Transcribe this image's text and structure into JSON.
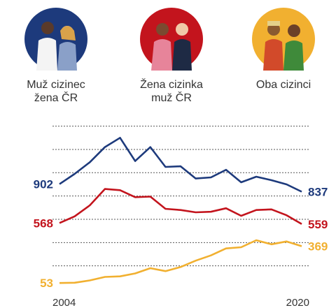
{
  "chart_data": {
    "type": "line",
    "categories": [
      "2004",
      null,
      null,
      null,
      null,
      null,
      null,
      null,
      null,
      null,
      null,
      null,
      null,
      null,
      null,
      null,
      "2020"
    ],
    "series": [
      {
        "name": "Muž cizinec\nžena ČR",
        "color": "#1d3a7c",
        "values": [
          902,
          990,
          1090,
          1220,
          1300,
          1100,
          1220,
          1050,
          1055,
          950,
          960,
          1025,
          918,
          966,
          936,
          900,
          837
        ]
      },
      {
        "name": "Žena cizinka\nmuž ČR",
        "color": "#c3141d",
        "values": [
          568,
          625,
          720,
          860,
          850,
          790,
          795,
          690,
          680,
          660,
          665,
          695,
          630,
          680,
          685,
          635,
          559
        ]
      },
      {
        "name": "Oba cizinci",
        "color": "#f1b030",
        "values": [
          53,
          55,
          75,
          105,
          110,
          135,
          180,
          155,
          190,
          245,
          290,
          350,
          360,
          420,
          385,
          410,
          369
        ]
      }
    ],
    "ylim": [
      0,
      1450
    ],
    "yticks": [
      200,
      400,
      600,
      800,
      1000,
      1200,
      1400
    ],
    "grid": true
  }
}
